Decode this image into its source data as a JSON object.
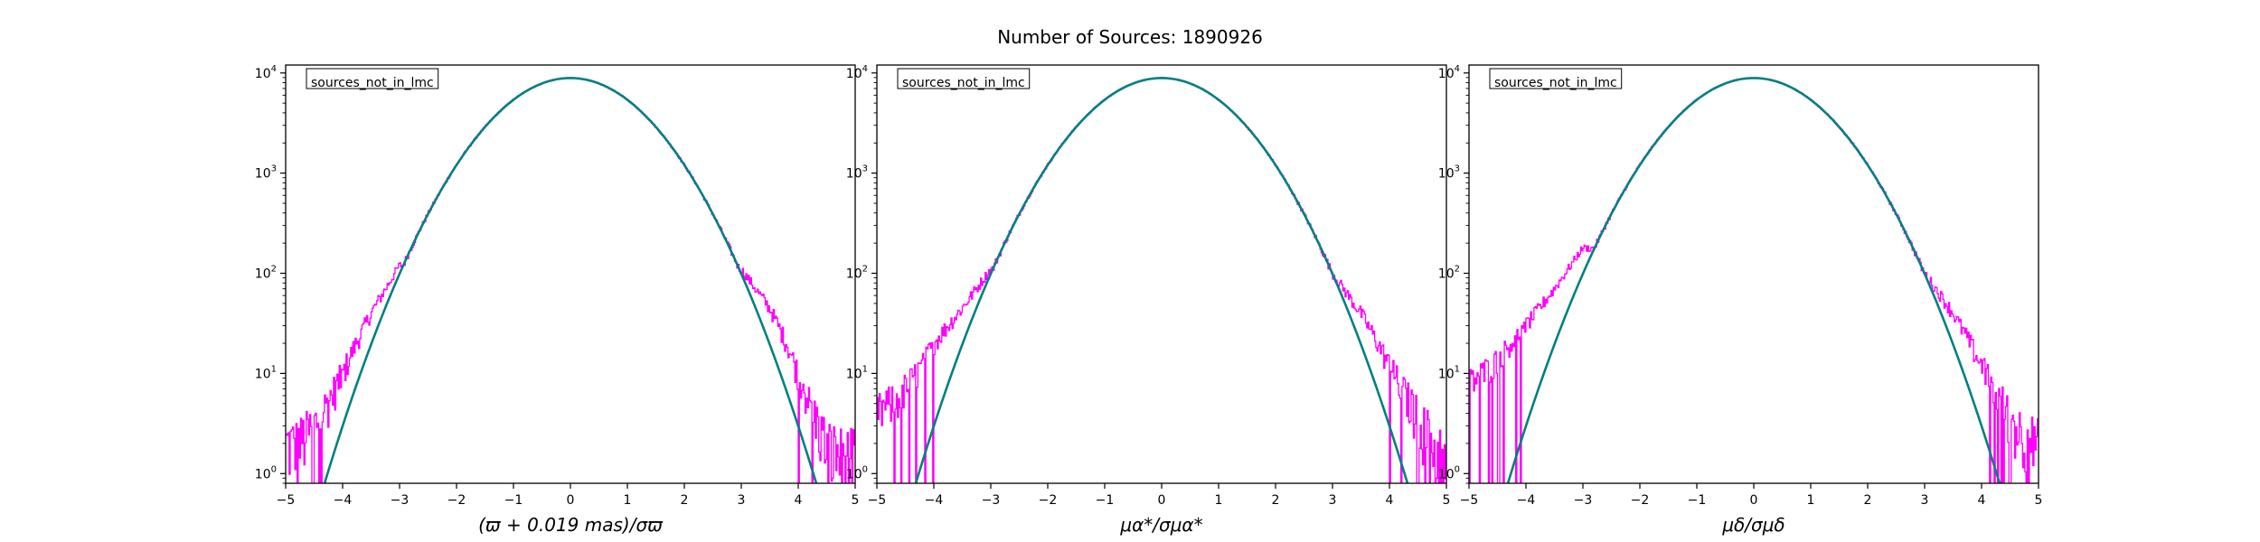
{
  "figure": {
    "suptitle": "Number of Sources: 1890926"
  },
  "colors": {
    "histogram": "#ff00ff",
    "gaussian": "#008080",
    "axis": "#000000"
  },
  "chart_data": [
    {
      "type": "line",
      "legend": "sources_not_in_lmc",
      "legend_placement": "top-left",
      "xlabel": "(ϖ + 0.019 mas)/σϖ",
      "ylabel": "",
      "xlim": [
        -5,
        5
      ],
      "ylim": [
        0.8,
        12000
      ],
      "yscale": "log",
      "grid": false,
      "x_ticks": [
        "−5",
        "−4",
        "−3",
        "−2",
        "−1",
        "0",
        "1",
        "2",
        "3",
        "4",
        "5"
      ],
      "y_ticks": [
        "10^0",
        "10^1",
        "10^2",
        "10^3",
        "10^4"
      ],
      "series": [
        {
          "kind": "histogram-step",
          "peak": 8900,
          "sigma": 1.0,
          "wings": [
            {
              "x": -4.8,
              "y": 2
            },
            {
              "x": -4.5,
              "y": 3
            },
            {
              "x": -4.2,
              "y": 6
            },
            {
              "x": -4.0,
              "y": 10
            },
            {
              "x": -3.8,
              "y": 18
            },
            {
              "x": -3.5,
              "y": 40
            },
            {
              "x": -3.0,
              "y": 120
            },
            {
              "x": 3.0,
              "y": 110
            },
            {
              "x": 3.5,
              "y": 45
            },
            {
              "x": 3.8,
              "y": 20
            },
            {
              "x": 4.0,
              "y": 10
            },
            {
              "x": 4.2,
              "y": 5
            },
            {
              "x": 4.5,
              "y": 2
            },
            {
              "x": 4.8,
              "y": 1.5
            }
          ]
        },
        {
          "kind": "gaussian",
          "peak": 8900,
          "mean": 0,
          "sigma": 1.0
        }
      ]
    },
    {
      "type": "line",
      "legend": "sources_not_in_lmc",
      "legend_placement": "top-left",
      "xlabel": "μα*/σμα*",
      "ylabel": "",
      "xlim": [
        -5,
        5
      ],
      "ylim": [
        0.8,
        12000
      ],
      "yscale": "log",
      "grid": false,
      "x_ticks": [
        "−5",
        "−4",
        "−3",
        "−2",
        "−1",
        "0",
        "1",
        "2",
        "3",
        "4",
        "5"
      ],
      "y_ticks": [
        "10^0",
        "10^1",
        "10^2",
        "10^3",
        "10^4"
      ],
      "series": [
        {
          "kind": "histogram-step",
          "peak": 8900,
          "sigma": 1.0,
          "wings": [
            {
              "x": -5.0,
              "y": 4
            },
            {
              "x": -4.6,
              "y": 6
            },
            {
              "x": -4.2,
              "y": 12
            },
            {
              "x": -4.0,
              "y": 20
            },
            {
              "x": -3.5,
              "y": 45
            },
            {
              "x": -3.0,
              "y": 110
            },
            {
              "x": 3.0,
              "y": 100
            },
            {
              "x": 3.5,
              "y": 40
            },
            {
              "x": 3.8,
              "y": 20
            },
            {
              "x": 4.0,
              "y": 12
            },
            {
              "x": 4.3,
              "y": 6
            },
            {
              "x": 4.6,
              "y": 3
            },
            {
              "x": 5.0,
              "y": 1.5
            }
          ]
        },
        {
          "kind": "gaussian",
          "peak": 8900,
          "mean": 0,
          "sigma": 1.0
        }
      ]
    },
    {
      "type": "line",
      "legend": "sources_not_in_lmc",
      "legend_placement": "top-left",
      "xlabel": "μδ/σμδ",
      "ylabel": "",
      "xlim": [
        -5,
        5
      ],
      "ylim": [
        0.8,
        12000
      ],
      "yscale": "log",
      "grid": false,
      "x_ticks": [
        "−5",
        "−4",
        "−3",
        "−2",
        "−1",
        "0",
        "1",
        "2",
        "3",
        "4",
        "5"
      ],
      "y_ticks": [
        "10^0",
        "10^1",
        "10^2",
        "10^3",
        "10^4"
      ],
      "series": [
        {
          "kind": "histogram-step",
          "peak": 8900,
          "sigma": 1.0,
          "wings": [
            {
              "x": -5.0,
              "y": 8
            },
            {
              "x": -4.6,
              "y": 12
            },
            {
              "x": -4.2,
              "y": 22
            },
            {
              "x": -4.0,
              "y": 30
            },
            {
              "x": -3.5,
              "y": 70
            },
            {
              "x": -3.0,
              "y": 180
            },
            {
              "x": 3.0,
              "y": 100
            },
            {
              "x": 3.5,
              "y": 40
            },
            {
              "x": 3.8,
              "y": 20
            },
            {
              "x": 4.0,
              "y": 12
            },
            {
              "x": 4.3,
              "y": 6
            },
            {
              "x": 4.6,
              "y": 3
            },
            {
              "x": 5.0,
              "y": 2
            }
          ]
        },
        {
          "kind": "gaussian",
          "peak": 8900,
          "mean": 0,
          "sigma": 1.0
        }
      ]
    }
  ]
}
